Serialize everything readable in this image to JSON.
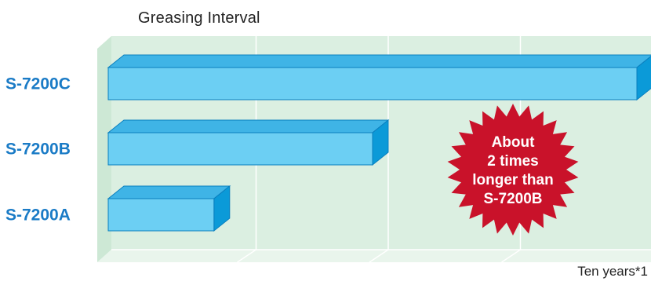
{
  "chart_data": {
    "type": "bar",
    "orientation": "horizontal",
    "title": "Greasing Interval",
    "categories": [
      "S-7200C",
      "S-7200B",
      "S-7200A"
    ],
    "values": [
      4,
      2,
      0.8
    ],
    "x_axis_note": "Ten years*1",
    "xlim": [
      0,
      4
    ],
    "grid": true,
    "annotation": {
      "lines": [
        "About",
        "2 times",
        "longer than",
        "S-7200B"
      ]
    },
    "colors": {
      "bar_front": "#6ccff3",
      "bar_top": "#3fb4e6",
      "bar_side": "#0b9ad8",
      "bar_stroke": "#0a7fbe",
      "category_label": "#1a7bc6",
      "plot_back": "#dbefe1",
      "plot_floor": "#e9f5ec",
      "plot_side": "#cde8d5",
      "badge": "#c9122a",
      "badge_text": "#ffffff"
    }
  }
}
